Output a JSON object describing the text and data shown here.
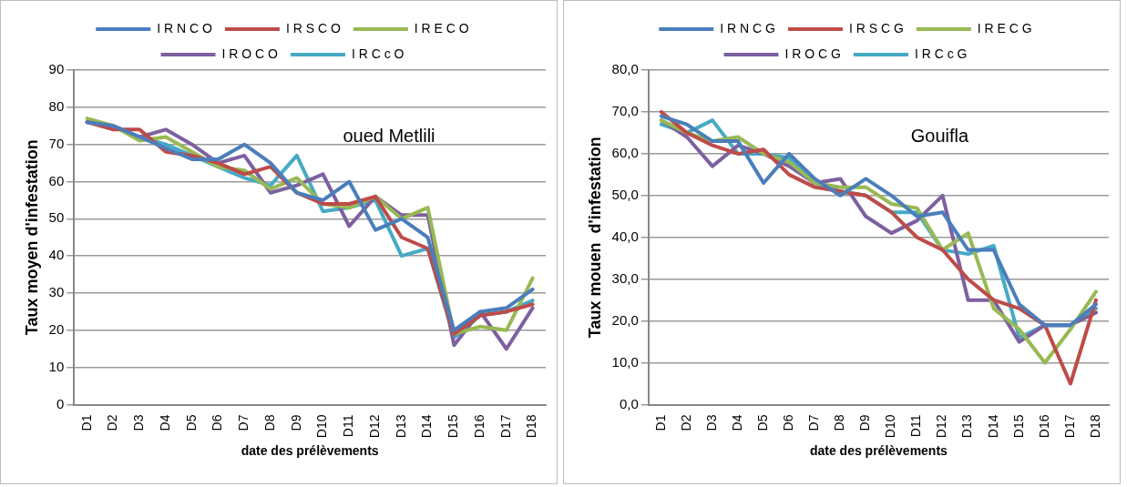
{
  "chart_data": [
    {
      "type": "line",
      "ylabel": "Taux moyen d'infestation",
      "xlabel": "date des prélèvements",
      "annotations": [
        "oued Metlili"
      ],
      "categories": [
        "D1",
        "D2",
        "D3",
        "D4",
        "D5",
        "D6",
        "D7",
        "D8",
        "D9",
        "D10",
        "D11",
        "D12",
        "D13",
        "D14",
        "D15",
        "D16",
        "D17",
        "D18"
      ],
      "series": [
        {
          "name": "I R N C O",
          "color": "#4a7ebb",
          "values": [
            76,
            75,
            72,
            69,
            66,
            66,
            70,
            65,
            57,
            55,
            60,
            47,
            50,
            45,
            20,
            25,
            26,
            31
          ]
        },
        {
          "name": "I R S C O",
          "color": "#be4b48",
          "values": [
            76,
            74,
            74,
            68,
            67,
            65,
            62,
            64,
            57,
            54,
            54,
            56,
            45,
            42,
            19,
            24,
            25,
            27
          ]
        },
        {
          "name": "I R E C O",
          "color": "#98b954",
          "values": [
            77,
            75,
            71,
            72,
            68,
            64,
            63,
            58,
            61,
            54,
            53,
            56,
            50,
            53,
            19,
            21,
            20,
            34
          ]
        },
        {
          "name": "I R O C O",
          "color": "#7d60a0",
          "values": [
            76,
            75,
            72,
            74,
            70,
            65,
            67,
            57,
            59,
            62,
            48,
            56,
            51,
            51,
            16,
            25,
            15,
            26
          ]
        },
        {
          "name": "I R C c O",
          "color": "#46aac5",
          "values": [
            76,
            75,
            72,
            70,
            67,
            64,
            61,
            59,
            67,
            52,
            53,
            55,
            40,
            42,
            18,
            24,
            25,
            28
          ]
        }
      ],
      "ylim": [
        0,
        90
      ],
      "yticks": [
        0,
        10,
        20,
        30,
        40,
        50,
        60,
        70,
        80,
        90
      ],
      "grid": "y",
      "legend": "top",
      "marker": "none",
      "line_style": "solid"
    },
    {
      "type": "line",
      "ylabel": "Taux mouen  d'infestation",
      "xlabel": "date des prélèvements",
      "annotations": [
        "Gouifla"
      ],
      "categories": [
        "D1",
        "D2",
        "D3",
        "D4",
        "D5",
        "D6",
        "D7",
        "D8",
        "D9",
        "D10",
        "D11",
        "D12",
        "D13",
        "D14",
        "D15",
        "D16",
        "D17",
        "D18"
      ],
      "series": [
        {
          "name": "I R N C G",
          "color": "#4a7ebb",
          "values": [
            69,
            67,
            63,
            63,
            53,
            60,
            54,
            50,
            54,
            50,
            45,
            46,
            37,
            37,
            24,
            19,
            19,
            24
          ]
        },
        {
          "name": "I R S C G",
          "color": "#be4b48",
          "values": [
            70,
            65,
            62,
            60,
            61,
            55,
            52,
            51,
            50,
            46,
            40,
            37,
            30,
            25,
            23,
            19,
            5,
            25
          ]
        },
        {
          "name": "I R E C G",
          "color": "#98b954",
          "values": [
            68,
            65,
            63,
            64,
            60,
            58,
            53,
            52,
            52,
            48,
            47,
            37,
            41,
            23,
            18,
            10,
            18,
            27
          ]
        },
        {
          "name": "I R O C G",
          "color": "#7d60a0",
          "values": [
            68,
            64,
            57,
            62,
            60,
            57,
            53,
            54,
            45,
            41,
            44,
            50,
            25,
            25,
            15,
            19,
            19,
            22
          ]
        },
        {
          "name": "I R C c G",
          "color": "#46aac5",
          "values": [
            67,
            65,
            68,
            60,
            60,
            59,
            53,
            51,
            50,
            46,
            46,
            37,
            36,
            38,
            16,
            19,
            19,
            23
          ]
        }
      ],
      "ylim": [
        0,
        80
      ],
      "yticks": [
        {
          "value": 0,
          "label": "0,0"
        },
        {
          "value": 10,
          "label": "10,0"
        },
        {
          "value": 20,
          "label": "20,0"
        },
        {
          "value": 30,
          "label": "30,0"
        },
        {
          "value": 40,
          "label": "40,0"
        },
        {
          "value": 50,
          "label": "50,0"
        },
        {
          "value": 60,
          "label": "60,0"
        },
        {
          "value": 70,
          "label": "70,0"
        },
        {
          "value": 80,
          "label": "80,0"
        }
      ],
      "grid": "y",
      "legend": "top",
      "marker": "none",
      "line_style": "solid"
    }
  ]
}
